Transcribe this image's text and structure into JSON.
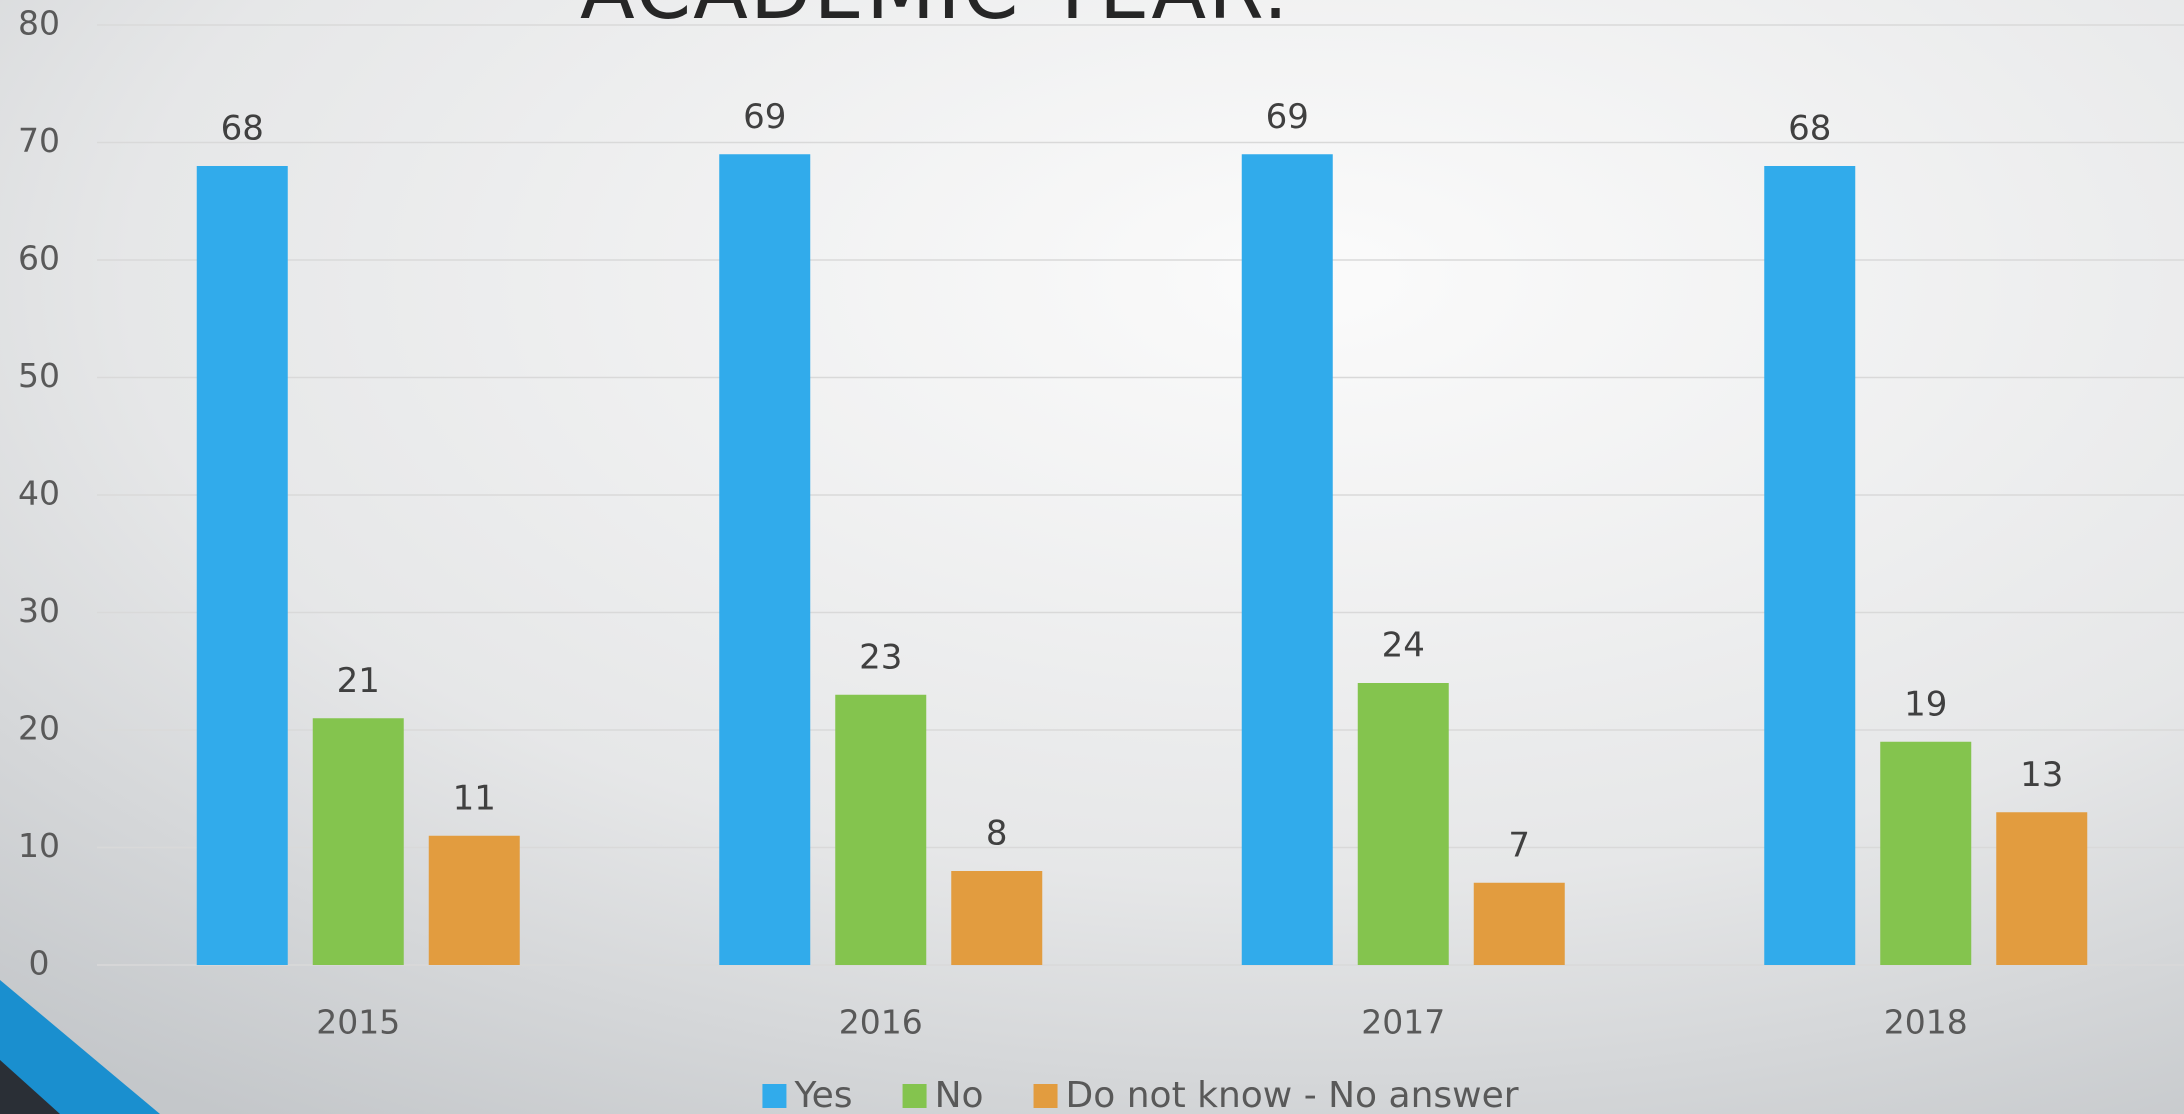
{
  "chart_data": {
    "type": "bar",
    "title": "ACADEMIC YEAR.",
    "categories": [
      "2015",
      "2016",
      "2017",
      "2018"
    ],
    "series": [
      {
        "name": "Yes",
        "color": "#31abeb",
        "values": [
          68,
          69,
          69,
          68
        ]
      },
      {
        "name": "No",
        "color": "#84c44e",
        "values": [
          21,
          23,
          24,
          19
        ]
      },
      {
        "name": "Do not know - No answer",
        "color": "#e29c3f",
        "values": [
          11,
          8,
          7,
          13
        ]
      }
    ],
    "ylim": [
      0,
      80
    ],
    "yticks": [
      0,
      10,
      20,
      30,
      40,
      50,
      60,
      70,
      80
    ],
    "grid": true,
    "legend": "bottom"
  }
}
